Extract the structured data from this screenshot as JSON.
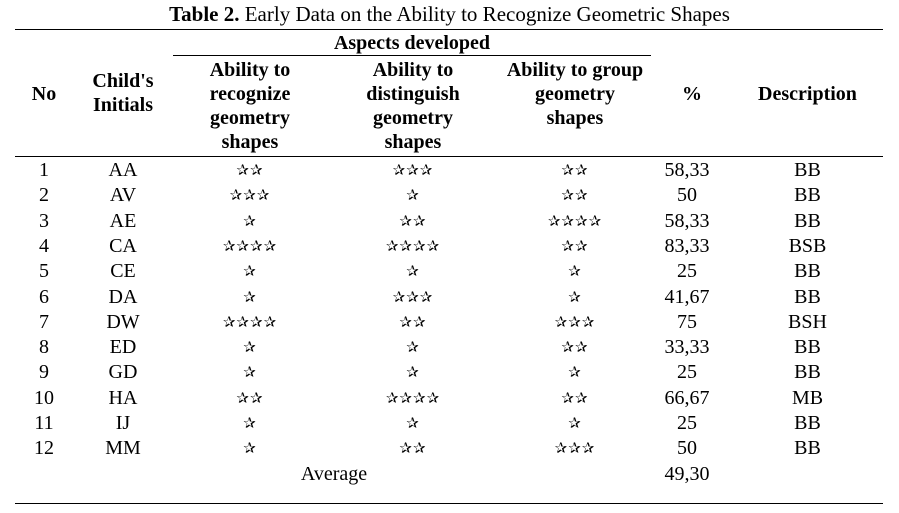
{
  "caption": {
    "label": "Table 2.",
    "title": "Early Data on the Ability to Recognize Geometric Shapes"
  },
  "header": {
    "no": "No",
    "initials": "Child's Initials",
    "aspects": "Aspects developed",
    "recognize": "Ability to recognize geometry shapes",
    "distinguish": "Ability to distinguish geometry shapes",
    "group": "Ability to group geometry shapes",
    "percent": "%",
    "description": "Description"
  },
  "star_glyph": "✰",
  "rows": [
    {
      "no": "1",
      "initials": "AA",
      "recognize": 2,
      "distinguish": 3,
      "group": 2,
      "percent": "58,33",
      "description": "BB"
    },
    {
      "no": "2",
      "initials": "AV",
      "recognize": 3,
      "distinguish": 1,
      "group": 2,
      "percent": "50",
      "description": "BB"
    },
    {
      "no": "3",
      "initials": "AE",
      "recognize": 1,
      "distinguish": 2,
      "group": 4,
      "percent": "58,33",
      "description": "BB"
    },
    {
      "no": "4",
      "initials": "CA",
      "recognize": 4,
      "distinguish": 4,
      "group": 2,
      "percent": "83,33",
      "description": "BSB"
    },
    {
      "no": "5",
      "initials": "CE",
      "recognize": 1,
      "distinguish": 1,
      "group": 1,
      "percent": "25",
      "description": "BB"
    },
    {
      "no": "6",
      "initials": "DA",
      "recognize": 1,
      "distinguish": 3,
      "group": 1,
      "percent": "41,67",
      "description": "BB"
    },
    {
      "no": "7",
      "initials": "DW",
      "recognize": 4,
      "distinguish": 2,
      "group": 3,
      "percent": "75",
      "description": "BSH"
    },
    {
      "no": "8",
      "initials": "ED",
      "recognize": 1,
      "distinguish": 1,
      "group": 2,
      "percent": "33,33",
      "description": "BB"
    },
    {
      "no": "9",
      "initials": "GD",
      "recognize": 1,
      "distinguish": 1,
      "group": 1,
      "percent": "25",
      "description": "BB"
    },
    {
      "no": "10",
      "initials": "HA",
      "recognize": 2,
      "distinguish": 4,
      "group": 2,
      "percent": "66,67",
      "description": "MB"
    },
    {
      "no": "11",
      "initials": "IJ",
      "recognize": 1,
      "distinguish": 1,
      "group": 1,
      "percent": "25",
      "description": "BB"
    },
    {
      "no": "12",
      "initials": "MM",
      "recognize": 1,
      "distinguish": 2,
      "group": 3,
      "percent": "50",
      "description": "BB"
    }
  ],
  "average": {
    "label": "Average",
    "value": "49,30"
  }
}
